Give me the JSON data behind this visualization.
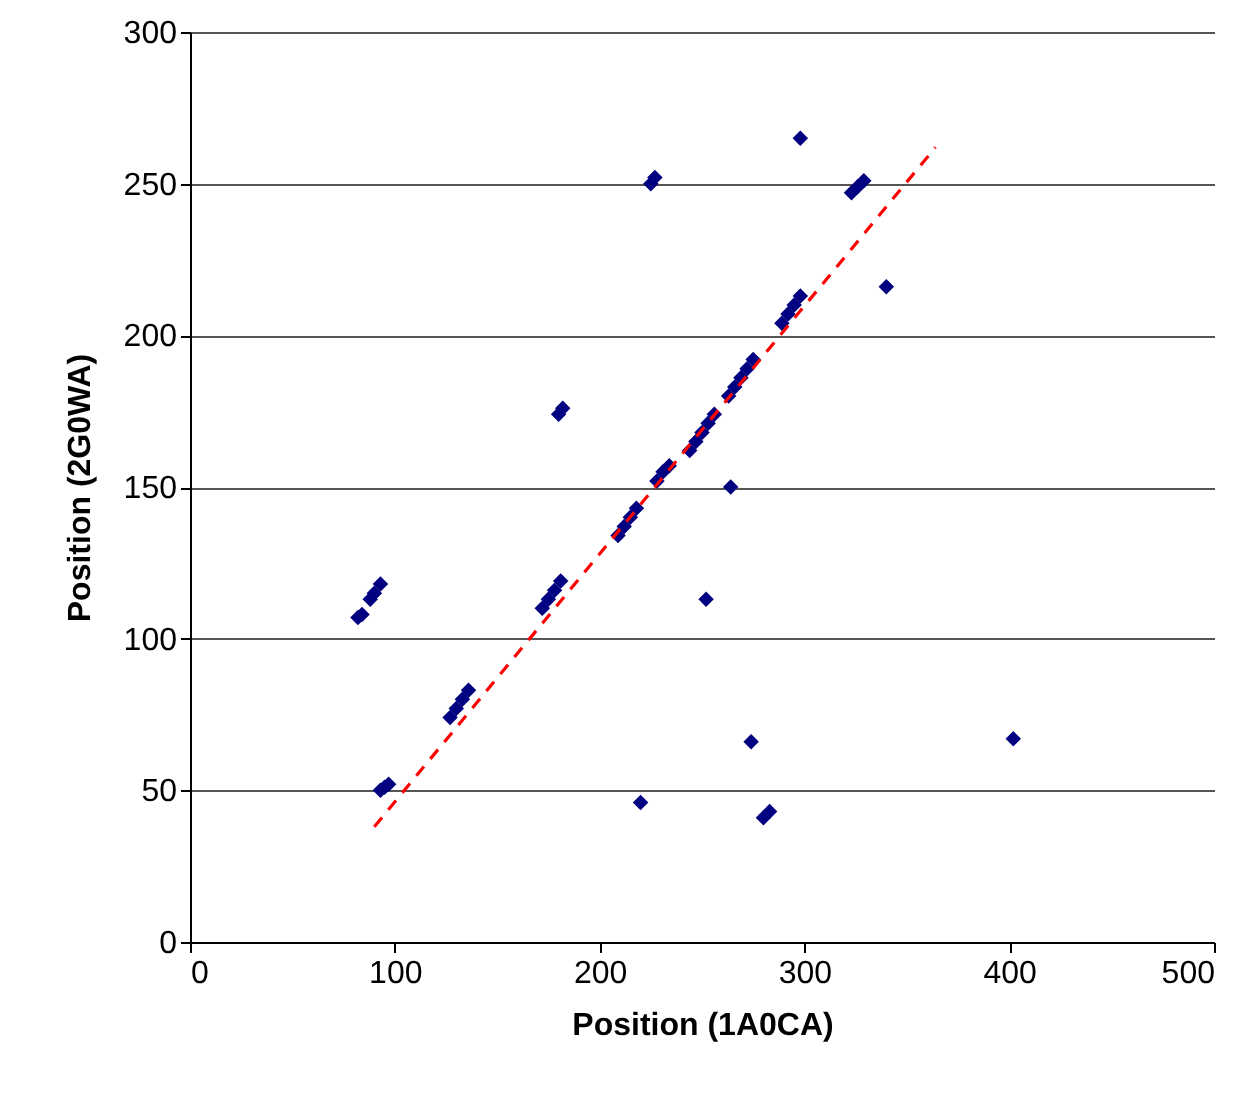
{
  "chart_data": {
    "type": "scatter",
    "xlabel": "Position (1A0CA)",
    "ylabel": "Position (2G0WA)",
    "xlim": [
      0,
      500
    ],
    "ylim": [
      0,
      300
    ],
    "xticks": [
      0,
      100,
      200,
      300,
      400,
      500
    ],
    "yticks": [
      0,
      50,
      100,
      150,
      200,
      250,
      300
    ],
    "grid": "y",
    "series": [
      {
        "marker": "diamond",
        "color": "#000080",
        "x": [
          82,
          84,
          88,
          90,
          93,
          93,
          95,
          97,
          127,
          130,
          133,
          136,
          172,
          175,
          178,
          181,
          180,
          182,
          220,
          209,
          212,
          215,
          218,
          225,
          227,
          228,
          231,
          234,
          244,
          247,
          250,
          253,
          256,
          263,
          266,
          269,
          272,
          275,
          252,
          264,
          274,
          280,
          283,
          298,
          340,
          402,
          289,
          292,
          295,
          298,
          323,
          326,
          329
        ],
        "values": [
          107,
          108,
          113,
          115,
          118,
          50,
          51,
          52,
          74,
          77,
          80,
          83,
          110,
          113,
          116,
          119,
          174,
          176,
          46,
          134,
          137,
          140,
          143,
          250,
          252,
          152,
          155,
          157,
          162,
          165,
          168,
          171,
          174,
          180,
          183,
          186,
          189,
          192,
          113,
          150,
          66,
          41,
          43,
          265,
          216,
          67,
          204,
          207,
          210,
          213,
          247,
          249,
          251
        ]
      },
      {
        "type": "line",
        "color": "#ff0000",
        "line_style": "dashed",
        "x": [
          90,
          364
        ],
        "values": [
          38,
          262
        ]
      }
    ]
  }
}
